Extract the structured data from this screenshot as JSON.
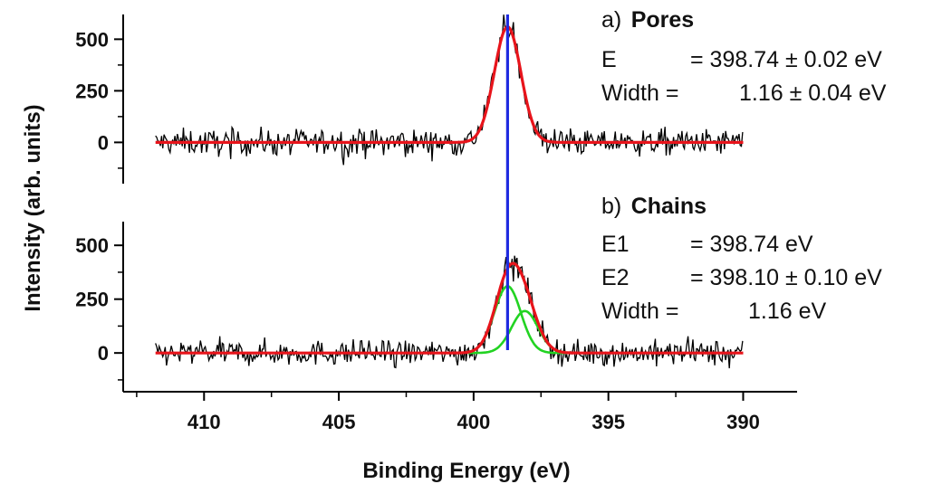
{
  "chart_data": {
    "type": "line",
    "xlabel": "Binding Energy (eV)",
    "ylabel": "Intensity (arb. units)",
    "x_reversed": true,
    "xlim": [
      413,
      388
    ],
    "xticks": [
      "410",
      "405",
      "400",
      "395",
      "390"
    ],
    "grid": false,
    "reference_line": {
      "x": 398.74,
      "color": "#1f2be0"
    },
    "panels": [
      {
        "label_prefix": "a)",
        "label_name": "Pores",
        "ylim": [
          -200,
          620
        ],
        "yticks": [
          "500",
          "250",
          "0"
        ],
        "annotations": [
          {
            "key": "E",
            "value": "= 398.74 ± 0.02 eV"
          },
          {
            "key": "Width =",
            "value": "1.16 ± 0.04 eV"
          }
        ],
        "series": [
          {
            "role": "data",
            "color": "#000000",
            "x_range": [
              411.8,
              390.0
            ],
            "noise_amplitude": 60,
            "profile": "measured XPS N 1s spectrum"
          },
          {
            "role": "fit",
            "color": "#e8141b",
            "peaks": [
              {
                "center": 398.74,
                "fwhm": 1.16,
                "height": 560
              }
            ],
            "x_range": [
              411.8,
              390.0
            ]
          }
        ]
      },
      {
        "label_prefix": "b)",
        "label_name": "Chains",
        "ylim": [
          -180,
          610
        ],
        "yticks": [
          "500",
          "250",
          "0"
        ],
        "annotations": [
          {
            "key": "E1",
            "value": "= 398.74 eV"
          },
          {
            "key": "E2",
            "value": "= 398.10 ± 0.10 eV"
          },
          {
            "key": "Width =",
            "value": "1.16 eV"
          }
        ],
        "series": [
          {
            "role": "data",
            "color": "#000000",
            "x_range": [
              411.8,
              390.0
            ],
            "noise_amplitude": 55,
            "profile": "measured XPS N 1s spectrum"
          },
          {
            "role": "component",
            "color": "#22d322",
            "peaks": [
              {
                "center": 398.74,
                "fwhm": 1.16,
                "height": 310
              }
            ],
            "x_range": [
              400.2,
              396.3
            ]
          },
          {
            "role": "component",
            "color": "#22d322",
            "peaks": [
              {
                "center": 398.1,
                "fwhm": 1.16,
                "height": 195
              }
            ],
            "x_range": [
              400.2,
              396.3
            ]
          },
          {
            "role": "fit",
            "color": "#e8141b",
            "peaks": [
              {
                "center": 398.74,
                "fwhm": 1.16,
                "height": 310
              },
              {
                "center": 398.1,
                "fwhm": 1.16,
                "height": 195
              }
            ],
            "x_range": [
              411.8,
              390.0
            ]
          }
        ]
      }
    ]
  }
}
